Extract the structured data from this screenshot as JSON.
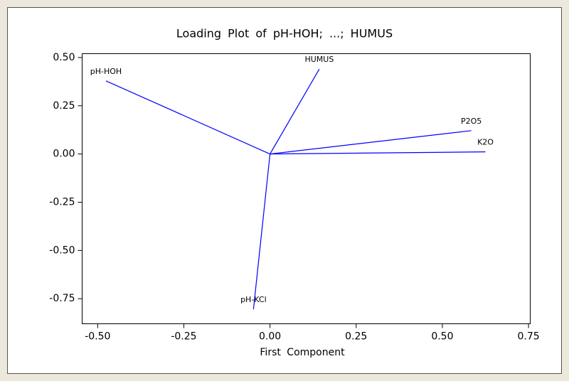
{
  "chart_data": {
    "type": "loading",
    "title": "Loading Plot of pH-HOH; ...; HUMUS",
    "x_label": "First Component",
    "labels": [
      "pH-HOH",
      "HUMUS",
      "P2O5",
      "K2O",
      "pH-KCl"
    ],
    "x": [
      -0.476,
      0.143,
      0.584,
      0.625,
      -0.048
    ],
    "y": [
      0.379,
      0.44,
      0.121,
      0.011,
      -0.805
    ],
    "color": "#0000ff",
    "xlim": [
      -0.545,
      0.755
    ],
    "ylim": [
      -0.88,
      0.52
    ],
    "xticks": [
      {
        "value": -0.5,
        "label": "-0.50"
      },
      {
        "value": -0.25,
        "label": "-0.25"
      },
      {
        "value": 0,
        "label": "0.00"
      },
      {
        "value": 0.25,
        "label": "0.25"
      },
      {
        "value": 0.5,
        "label": "0.50"
      },
      {
        "value": 0.75,
        "label": "0.75"
      }
    ],
    "yticks": [
      {
        "value": 0.5,
        "label": "0.50"
      },
      {
        "value": 0.25,
        "label": "0.25"
      },
      {
        "value": 0,
        "label": "0.00"
      },
      {
        "value": -0.25,
        "label": "-0.25"
      },
      {
        "value": -0.5,
        "label": "-0.50"
      },
      {
        "value": -0.75,
        "label": "-0.75"
      }
    ]
  }
}
